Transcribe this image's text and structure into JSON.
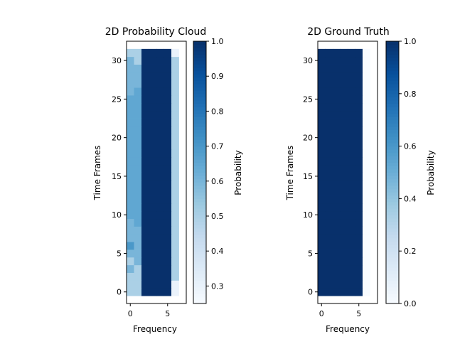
{
  "chart_data": [
    {
      "type": "heatmap",
      "title": "2D Probability Cloud",
      "xlabel": "Frequency",
      "ylabel": "Time Frames",
      "x_ticks": [
        0,
        5
      ],
      "y_ticks": [
        0,
        5,
        10,
        15,
        20,
        25,
        30
      ],
      "xlim": [
        -0.5,
        7.5
      ],
      "ylim": [
        -1.5,
        32.5
      ],
      "colormap": "Blues",
      "colorbar": {
        "label": "Probability",
        "min": 0.25,
        "max": 1.0,
        "ticks": [
          "0.3",
          "0.4",
          "0.5",
          "0.6",
          "0.7",
          "0.8",
          "0.9",
          "1.0"
        ]
      },
      "matrix": [
        [
          0.5,
          0.5,
          1.0,
          1.0,
          1.0,
          1.0,
          0.3
        ],
        [
          0.5,
          0.5,
          1.0,
          1.0,
          1.0,
          1.0,
          0.3
        ],
        [
          0.5,
          0.5,
          1.0,
          1.0,
          1.0,
          1.0,
          0.5
        ],
        [
          0.6,
          0.5,
          1.0,
          1.0,
          1.0,
          1.0,
          0.5
        ],
        [
          0.5,
          0.6,
          1.0,
          1.0,
          1.0,
          1.0,
          0.5
        ],
        [
          0.6,
          0.6,
          1.0,
          1.0,
          1.0,
          1.0,
          0.5
        ],
        [
          0.7,
          0.6,
          1.0,
          1.0,
          1.0,
          1.0,
          0.5
        ],
        [
          0.6,
          0.6,
          1.0,
          1.0,
          1.0,
          1.0,
          0.5
        ],
        [
          0.6,
          0.6,
          1.0,
          1.0,
          1.0,
          1.0,
          0.5
        ],
        [
          0.6,
          0.65,
          1.0,
          1.0,
          1.0,
          1.0,
          0.5
        ],
        [
          0.65,
          0.65,
          1.0,
          1.0,
          1.0,
          1.0,
          0.5
        ],
        [
          0.65,
          0.65,
          1.0,
          1.0,
          1.0,
          1.0,
          0.5
        ],
        [
          0.65,
          0.65,
          1.0,
          1.0,
          1.0,
          1.0,
          0.5
        ],
        [
          0.65,
          0.65,
          1.0,
          1.0,
          1.0,
          1.0,
          0.5
        ],
        [
          0.65,
          0.65,
          1.0,
          1.0,
          1.0,
          1.0,
          0.5
        ],
        [
          0.65,
          0.65,
          1.0,
          1.0,
          1.0,
          1.0,
          0.5
        ],
        [
          0.65,
          0.65,
          1.0,
          1.0,
          1.0,
          1.0,
          0.5
        ],
        [
          0.65,
          0.65,
          1.0,
          1.0,
          1.0,
          1.0,
          0.5
        ],
        [
          0.65,
          0.65,
          1.0,
          1.0,
          1.0,
          1.0,
          0.5
        ],
        [
          0.65,
          0.65,
          1.0,
          1.0,
          1.0,
          1.0,
          0.5
        ],
        [
          0.65,
          0.65,
          1.0,
          1.0,
          1.0,
          1.0,
          0.5
        ],
        [
          0.65,
          0.65,
          1.0,
          1.0,
          1.0,
          1.0,
          0.5
        ],
        [
          0.65,
          0.65,
          1.0,
          1.0,
          1.0,
          1.0,
          0.5
        ],
        [
          0.65,
          0.65,
          1.0,
          1.0,
          1.0,
          1.0,
          0.5
        ],
        [
          0.65,
          0.65,
          1.0,
          1.0,
          1.0,
          1.0,
          0.5
        ],
        [
          0.65,
          0.65,
          1.0,
          1.0,
          1.0,
          1.0,
          0.5
        ],
        [
          0.6,
          0.65,
          1.0,
          1.0,
          1.0,
          1.0,
          0.5
        ],
        [
          0.6,
          0.6,
          1.0,
          1.0,
          1.0,
          1.0,
          0.5
        ],
        [
          0.6,
          0.6,
          1.0,
          1.0,
          1.0,
          1.0,
          0.5
        ],
        [
          0.6,
          0.6,
          1.0,
          1.0,
          1.0,
          1.0,
          0.5
        ],
        [
          0.6,
          0.5,
          1.0,
          1.0,
          1.0,
          1.0,
          0.5
        ],
        [
          0.5,
          0.5,
          1.0,
          1.0,
          1.0,
          1.0,
          0.3
        ]
      ]
    },
    {
      "type": "heatmap",
      "title": "2D Ground Truth",
      "xlabel": "Frequency",
      "ylabel": "Time Frames",
      "x_ticks": [
        0,
        5
      ],
      "y_ticks": [
        0,
        5,
        10,
        15,
        20,
        25,
        30
      ],
      "xlim": [
        -0.5,
        7.5
      ],
      "ylim": [
        -1.5,
        32.5
      ],
      "colormap": "Blues",
      "colorbar": {
        "label": "Probability",
        "min": 0.0,
        "max": 1.0,
        "ticks": [
          "0.0",
          "0.2",
          "0.4",
          "0.6",
          "0.8",
          "1.0"
        ]
      },
      "matrix_rule": "1.0 where frequency 0-5 and time frames 0-31, else 0.0"
    }
  ]
}
